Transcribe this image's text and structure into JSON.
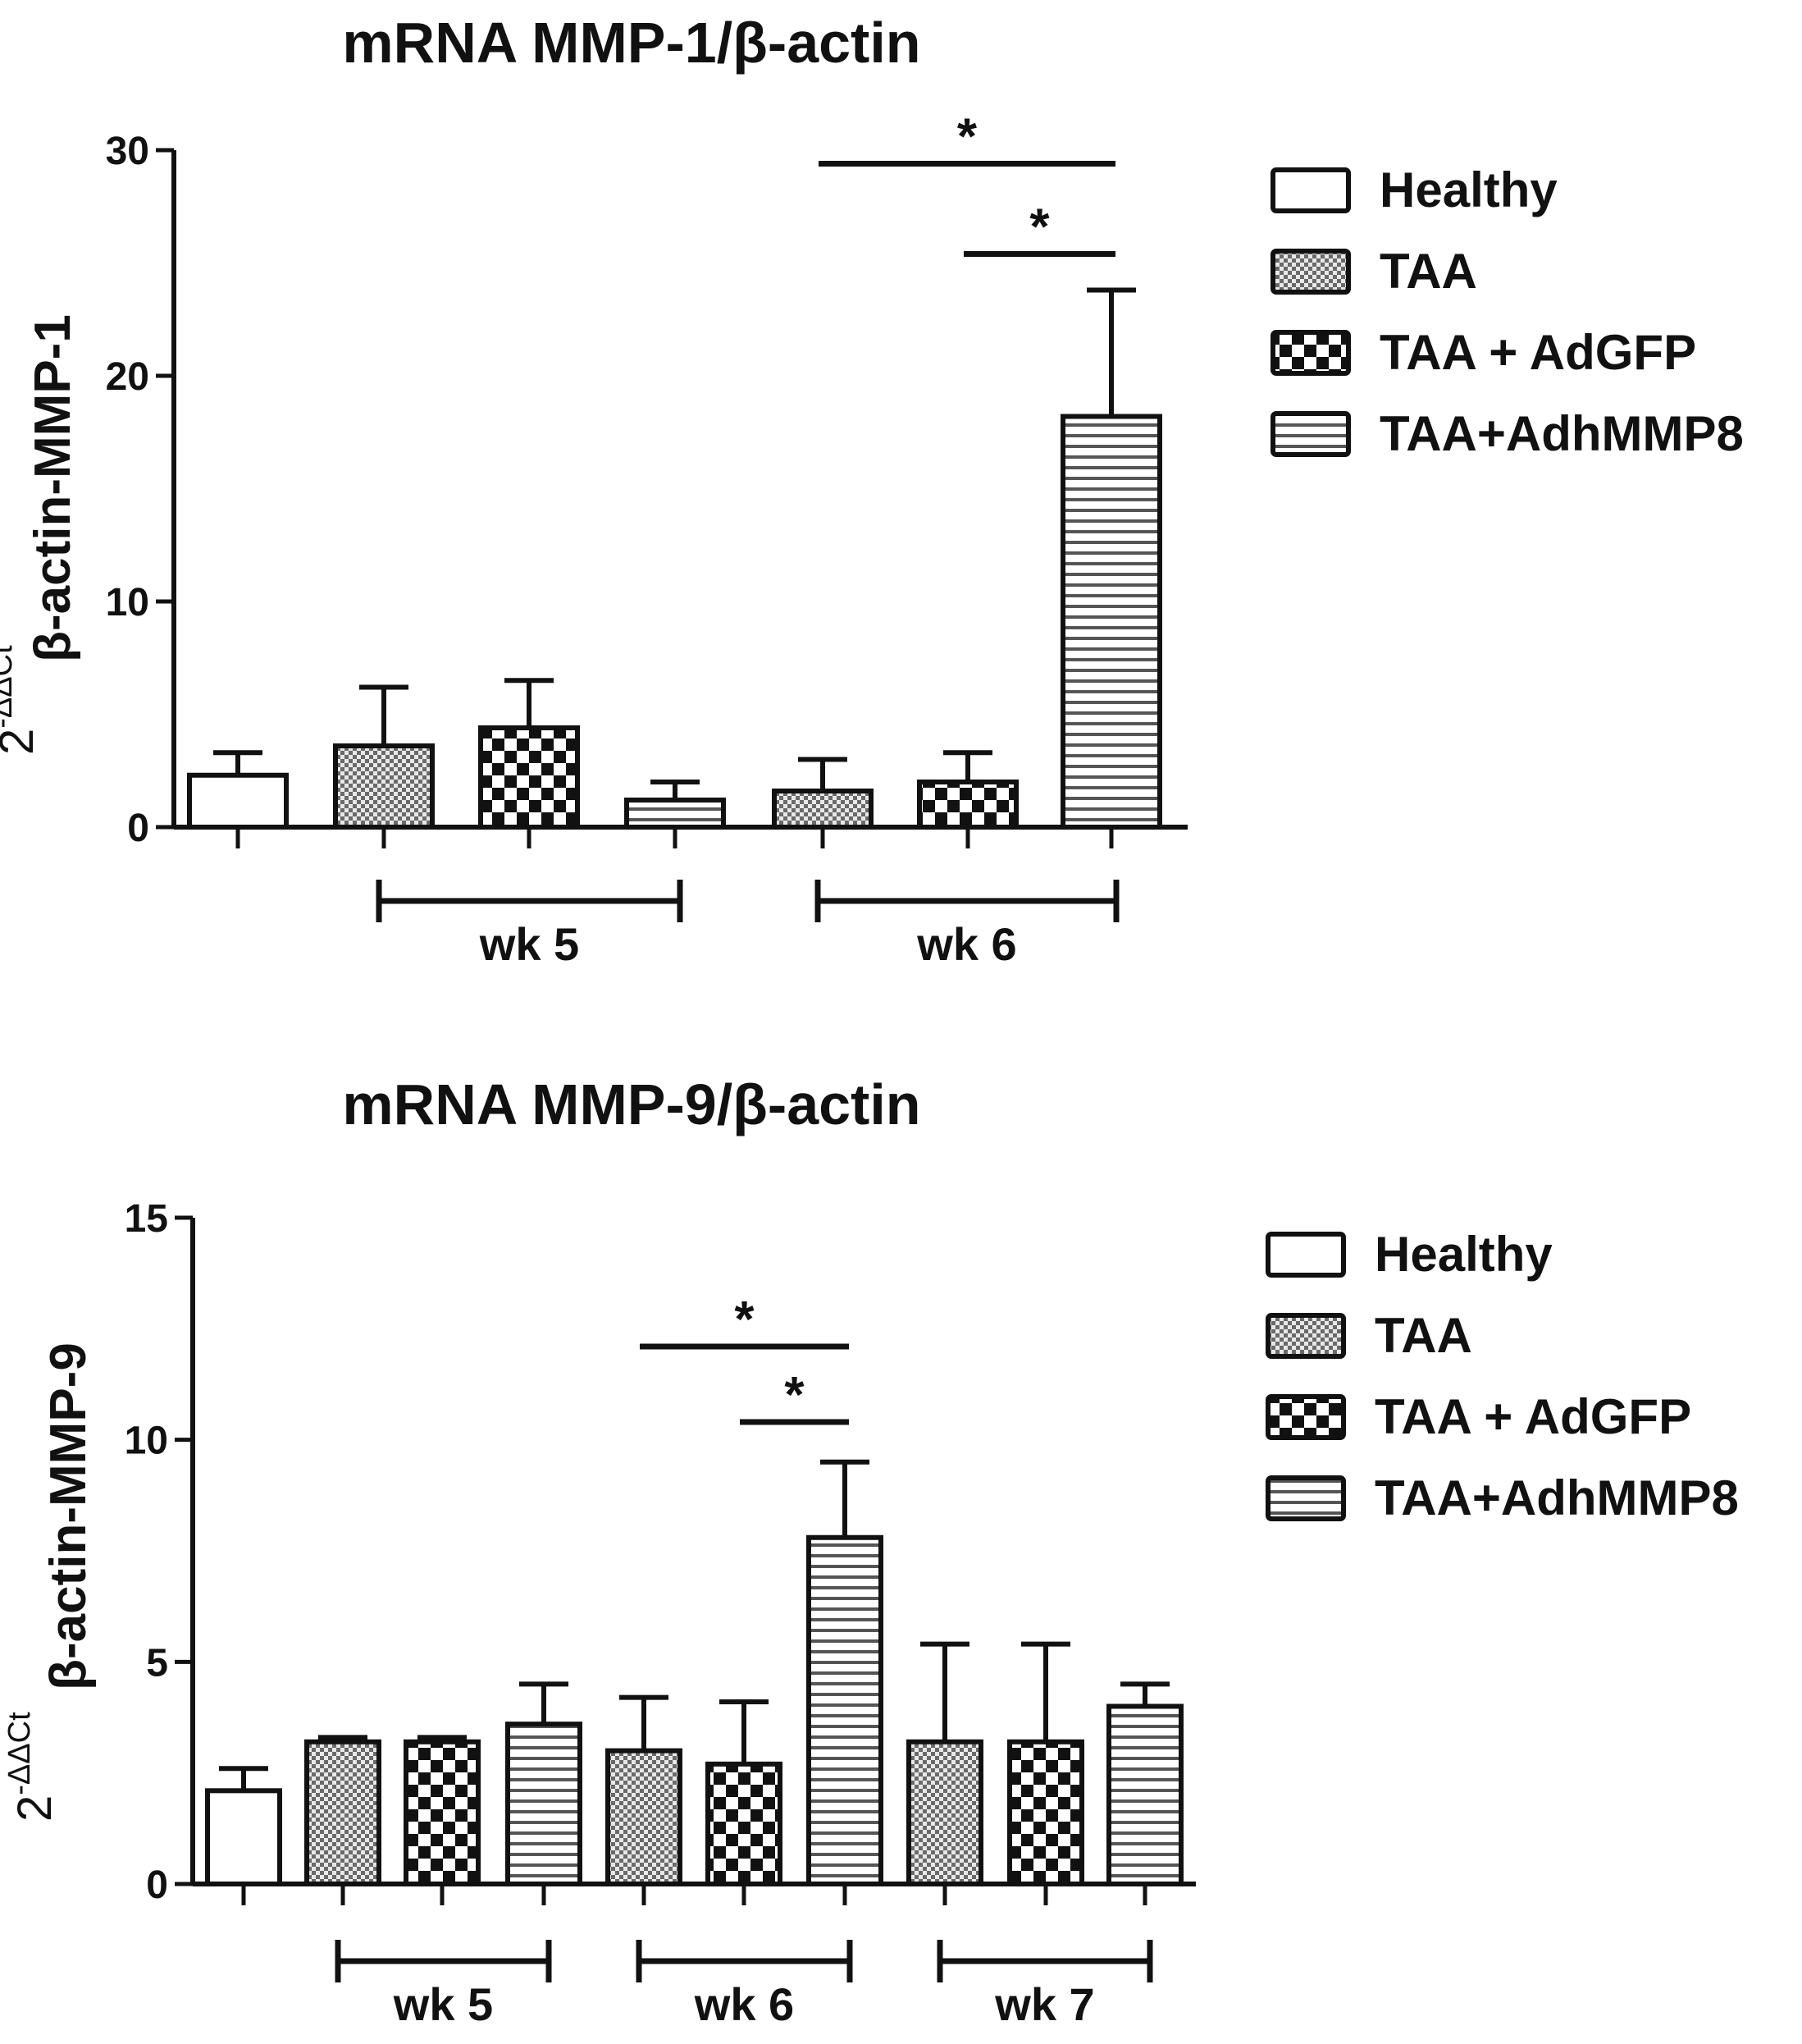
{
  "chart_data": [
    {
      "type": "bar",
      "title": "mRNA MMP-1/β-actin",
      "ylabel_prefix": "2",
      "ylabel_superscript": "-ΔΔCt",
      "ylabel_main": "β-actin-MMP-1",
      "ylim": [
        0,
        30
      ],
      "yticks": [
        0,
        10,
        20,
        30
      ],
      "bars": [
        {
          "group": "Healthy",
          "value": 2.3,
          "error": 1.0
        },
        {
          "group": "TAA",
          "value": 3.6,
          "error": 2.6
        },
        {
          "group": "TAA + AdGFP",
          "value": 4.4,
          "error": 2.1
        },
        {
          "group": "TAA+AdhMMP8",
          "value": 1.2,
          "error": 0.8
        },
        {
          "group": "TAA",
          "value": 1.6,
          "error": 1.4
        },
        {
          "group": "TAA + AdGFP",
          "value": 2.0,
          "error": 1.3
        },
        {
          "group": "TAA+AdhMMP8",
          "value": 18.2,
          "error": 5.6
        }
      ],
      "brackets": [
        {
          "label": "wk 5",
          "from_bar": 1,
          "to_bar": 3
        },
        {
          "label": "wk 6",
          "from_bar": 4,
          "to_bar": 6
        }
      ],
      "significance": [
        {
          "label": "*",
          "from_bar": 4,
          "to_bar": 6,
          "y": 29.4
        },
        {
          "label": "*",
          "from_bar": 5,
          "to_bar": 6,
          "y": 25.4
        }
      ],
      "legend": [
        "Healthy",
        "TAA",
        "TAA + AdGFP",
        "TAA+AdhMMP8"
      ],
      "legend_position": "top-right"
    },
    {
      "type": "bar",
      "title": "mRNA MMP-9/β-actin",
      "ylabel_prefix": "2",
      "ylabel_superscript": "-ΔΔCt",
      "ylabel_main": "β-actin-MMP-9",
      "ylim": [
        0,
        15
      ],
      "yticks": [
        0,
        5,
        10,
        15
      ],
      "bars": [
        {
          "group": "Healthy",
          "value": 2.1,
          "error": 0.5
        },
        {
          "group": "TAA",
          "value": 3.2,
          "error": 0.1
        },
        {
          "group": "TAA + AdGFP",
          "value": 3.2,
          "error": 0.1
        },
        {
          "group": "TAA+AdhMMP8",
          "value": 3.6,
          "error": 0.9
        },
        {
          "group": "TAA",
          "value": 3.0,
          "error": 1.2
        },
        {
          "group": "TAA + AdGFP",
          "value": 2.7,
          "error": 1.4
        },
        {
          "group": "TAA+AdhMMP8",
          "value": 7.8,
          "error": 1.7
        },
        {
          "group": "TAA",
          "value": 3.2,
          "error": 2.2
        },
        {
          "group": "TAA + AdGFP",
          "value": 3.2,
          "error": 2.2
        },
        {
          "group": "TAA+AdhMMP8",
          "value": 4.0,
          "error": 0.5
        }
      ],
      "brackets": [
        {
          "label": "wk 5",
          "from_bar": 1,
          "to_bar": 3
        },
        {
          "label": "wk 6",
          "from_bar": 4,
          "to_bar": 6
        },
        {
          "label": "wk 7",
          "from_bar": 7,
          "to_bar": 9
        }
      ],
      "significance": [
        {
          "label": "*",
          "from_bar": 4,
          "to_bar": 6,
          "y": 12.1
        },
        {
          "label": "*",
          "from_bar": 5,
          "to_bar": 6,
          "y": 10.4
        }
      ],
      "legend": [
        "Healthy",
        "TAA",
        "TAA + AdGFP",
        "TAA+AdhMMP8"
      ],
      "legend_position": "top-right"
    }
  ],
  "patterns": {
    "Healthy": "none",
    "TAA": "fine-check",
    "TAA + AdGFP": "coarse-check",
    "TAA+AdhMMP8": "horizontal-stripes"
  },
  "colors": {
    "ink": "#111111",
    "background": "#ffffff",
    "stripe_fill": "#d8d8d8"
  }
}
